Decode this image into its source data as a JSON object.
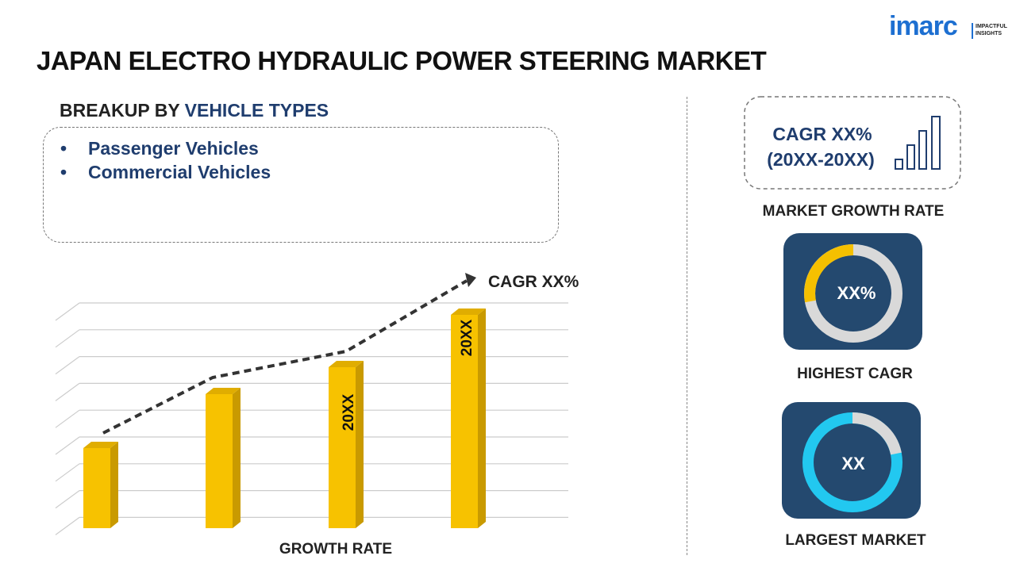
{
  "header": {
    "title": "JAPAN ELECTRO HYDRAULIC POWER STEERING MARKET",
    "logo": "imarc",
    "logo_tagline": [
      "IMPACTFUL",
      "INSIGHTS"
    ]
  },
  "breakup": {
    "label": "BREAKUP BY",
    "highlight": "VEHICLE TYPES",
    "items": [
      "Passenger Vehicles",
      "Commercial Vehicles"
    ]
  },
  "growth_chart": {
    "trend_label": "CAGR XX%",
    "bar_labels": [
      "20XX",
      "20XX"
    ],
    "axis_label": "GROWTH RATE"
  },
  "panels": {
    "growth": {
      "value": "CAGR XX%",
      "period": "(20XX-20XX)",
      "label": "MARKET GROWTH RATE"
    },
    "highest": {
      "value": "XX%",
      "label": "HIGHEST CAGR"
    },
    "largest": {
      "value": "XX",
      "label": "LARGEST MARKET"
    }
  }
}
